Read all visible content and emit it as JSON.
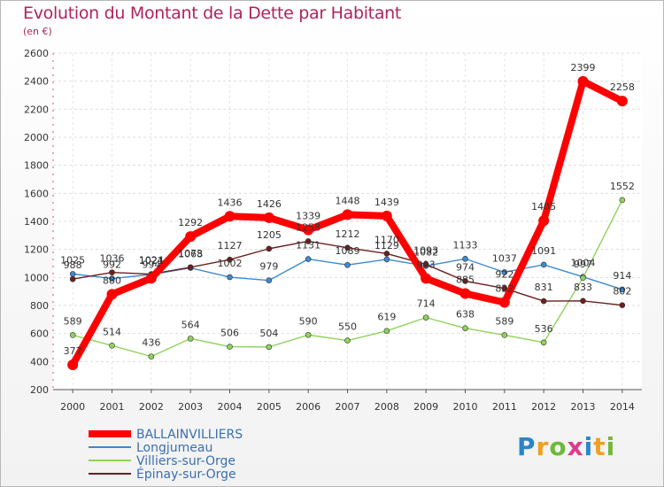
{
  "page": {
    "title": "Evolution du Montant de la Dette par Habitant",
    "unit": "(en €)",
    "logo": "Proxiti"
  },
  "chart_data": {
    "type": "line",
    "title": "Evolution du Montant de la Dette par Habitant",
    "subtitle": "(en €)",
    "xlabel": "",
    "ylabel": "",
    "x": [
      "2000",
      "2001",
      "2002",
      "2003",
      "2004",
      "2005",
      "2006",
      "2007",
      "2008",
      "2009",
      "2010",
      "2011",
      "2012",
      "2013",
      "2014"
    ],
    "ylim": [
      200,
      2600
    ],
    "yticks": [
      "200",
      "400",
      "600",
      "800",
      "1000",
      "1200",
      "1400",
      "1600",
      "1800",
      "2000",
      "2200",
      "2400",
      "2600"
    ],
    "grid": true,
    "legend_position": "bottom-left",
    "series": [
      {
        "name": "BALLAINVILLIERS",
        "color": "#ff0000",
        "values": [
          377,
          880,
          994,
          1292,
          1436,
          1426,
          1339,
          1448,
          1439,
          993,
          885,
          822,
          1405,
          2399,
          2258
        ],
        "labels": [
          "377",
          "880",
          "994",
          "1292",
          "1436",
          "1426",
          "1339",
          "1448",
          "1439",
          "993",
          "885",
          "822",
          "1405",
          "2399",
          "2258"
        ]
      },
      {
        "name": "Longjumeau",
        "color": "#3d8ad0",
        "values": [
          1025,
          992,
          1021,
          1068,
          1002,
          979,
          1131,
          1089,
          1129,
          1082,
          1133,
          1037,
          1091,
          1004,
          914
        ],
        "labels": [
          "1025",
          "992",
          "1021",
          "1068",
          "1002",
          "979",
          "1131",
          "1089",
          "1129",
          "1082",
          "1133",
          "1037",
          "1091",
          "1004",
          "914"
        ]
      },
      {
        "name": "Villiers-sur-Orge",
        "color": "#8fd25a",
        "values": [
          589,
          514,
          436,
          564,
          506,
          504,
          590,
          550,
          619,
          714,
          638,
          589,
          536,
          997,
          1552
        ],
        "labels": [
          "589",
          "514",
          "436",
          "564",
          "506",
          "504",
          "590",
          "550",
          "619",
          "714",
          "638",
          "589",
          "536",
          "997",
          "1552"
        ]
      },
      {
        "name": "Épinay-sur-Orge",
        "color": "#6b1f1f",
        "values": [
          988,
          1036,
          1024,
          1073,
          1127,
          1205,
          1258,
          1212,
          1170,
          1093,
          974,
          922,
          831,
          833,
          802
        ],
        "labels": [
          "988",
          "1036",
          "1024",
          "1073",
          "1127",
          "1205",
          "1258",
          "1212",
          "1170",
          "1093",
          "974",
          "922",
          "831",
          "833",
          "802"
        ]
      }
    ]
  }
}
